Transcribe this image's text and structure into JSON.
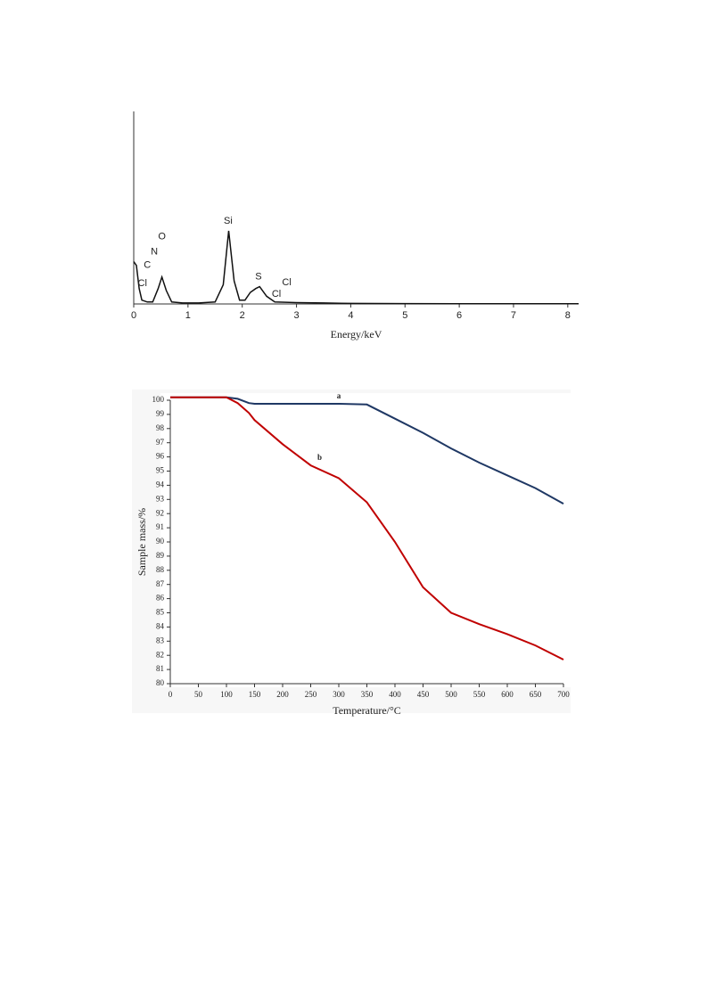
{
  "chart_data": [
    {
      "type": "line",
      "xlabel": "Energy/keV",
      "color": "#111111",
      "grid": false,
      "x": [
        0,
        0.05,
        0.1,
        0.15,
        0.25,
        0.35,
        0.45,
        0.52,
        0.6,
        0.7,
        0.9,
        1.2,
        1.5,
        1.65,
        1.75,
        1.85,
        1.95,
        2.05,
        2.15,
        2.25,
        2.32,
        2.45,
        2.6,
        3,
        3.5,
        4,
        5,
        6,
        7,
        8.2
      ],
      "values": [
        22,
        20,
        8,
        2,
        1,
        1,
        8,
        14,
        7,
        1,
        0.5,
        0.5,
        1,
        10,
        38,
        12,
        2,
        2,
        6,
        8,
        9,
        4,
        1,
        0.7,
        0.5,
        0.3,
        0.2,
        0.1,
        0.1,
        0.1
      ],
      "xlim": [
        0,
        8.2
      ],
      "xticks": [
        0,
        1,
        2,
        3,
        4,
        5,
        6,
        7,
        8
      ],
      "ylim": [
        0,
        100
      ],
      "annotations": [
        {
          "text": "Cl",
          "x": 0.16,
          "y": 10.6
        },
        {
          "text": "C",
          "x": 0.25,
          "y": 20
        },
        {
          "text": "N",
          "x": 0.38,
          "y": 27
        },
        {
          "text": "O",
          "x": 0.52,
          "y": 35
        },
        {
          "text": "Si",
          "x": 1.74,
          "y": 43
        },
        {
          "text": "S",
          "x": 2.3,
          "y": 14
        },
        {
          "text": "Cl",
          "x": 2.63,
          "y": 5
        },
        {
          "text": "Cl",
          "x": 2.82,
          "y": 11
        }
      ]
    },
    {
      "type": "line",
      "xlabel": "Temperature/°C",
      "ylabel": "Sample mass/%",
      "grid": false,
      "x": [
        0,
        100,
        120,
        140,
        150,
        200,
        250,
        300,
        350,
        400,
        450,
        500,
        550,
        600,
        650,
        700
      ],
      "series": [
        {
          "name": "a",
          "color": "#1f3864",
          "values": [
            100.2,
            100.2,
            100.1,
            99.8,
            99.75,
            99.75,
            99.75,
            99.75,
            99.7,
            98.7,
            97.7,
            96.6,
            95.6,
            94.7,
            93.8,
            92.7
          ]
        },
        {
          "name": "b",
          "color": "#c00000",
          "values": [
            100.2,
            100.2,
            99.8,
            99.1,
            98.6,
            96.9,
            95.4,
            94.5,
            92.8,
            90.0,
            86.8,
            85.0,
            84.2,
            83.5,
            82.7,
            81.7
          ]
        }
      ],
      "xlim": [
        0,
        700
      ],
      "xticks": [
        0,
        50,
        100,
        150,
        200,
        250,
        300,
        350,
        400,
        450,
        500,
        550,
        600,
        650,
        700
      ],
      "ylim": [
        80,
        100
      ],
      "yticks": [
        80,
        81,
        82,
        83,
        84,
        85,
        86,
        87,
        88,
        89,
        90,
        91,
        92,
        93,
        94,
        95,
        96,
        97,
        98,
        99,
        100
      ]
    }
  ]
}
